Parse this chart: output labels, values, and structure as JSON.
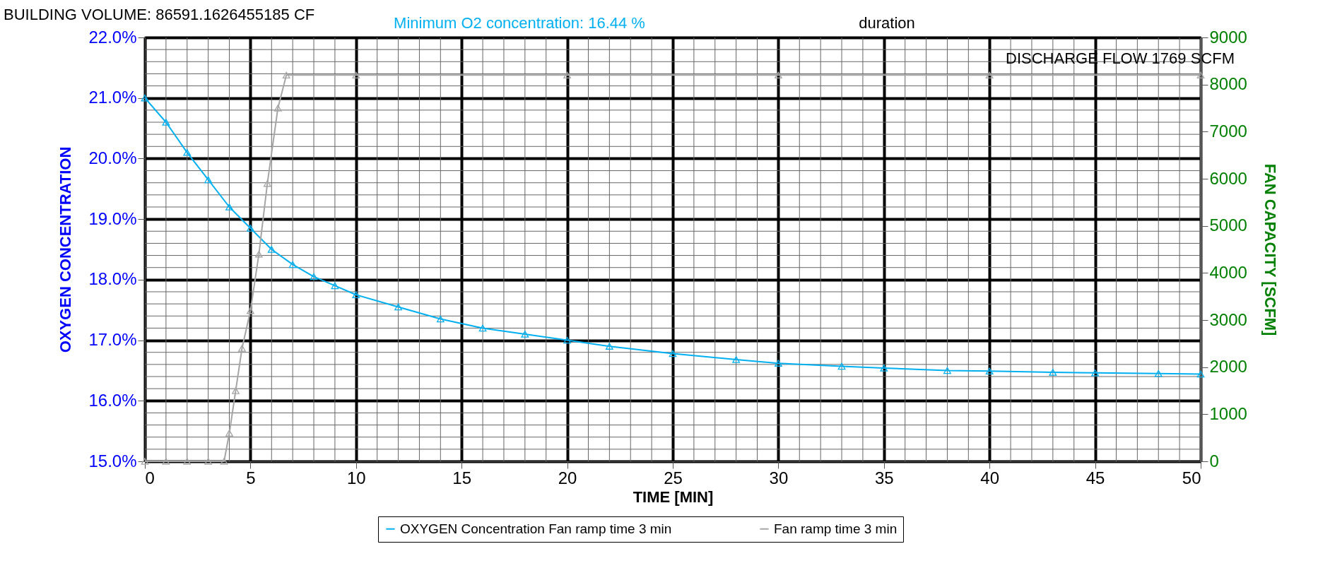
{
  "chart_data": {
    "type": "line",
    "xlabel": "TIME [MIN]",
    "ylabel": "OXYGEN CONCENTRATION",
    "y2label": "FAN CAPACITY  [SCFM]",
    "annotations": [
      "BUILDING VOLUME: 86591.1626455185  CF",
      "Minimum O2 concentration: 16.44  %",
      "duration",
      "DISCHARGE FLOW 1769  SCFM"
    ],
    "xlim": [
      0,
      50
    ],
    "xticks": [
      0,
      5,
      10,
      15,
      20,
      25,
      30,
      35,
      40,
      45,
      50
    ],
    "ylim": [
      15,
      22
    ],
    "yticks": [
      {
        "value": 15,
        "label": "15.0%"
      },
      {
        "value": 16,
        "label": "16.0%"
      },
      {
        "value": 17,
        "label": "17.0%"
      },
      {
        "value": 18,
        "label": "18.0%"
      },
      {
        "value": 19,
        "label": "19.0%"
      },
      {
        "value": 20,
        "label": "20.0%"
      },
      {
        "value": 21,
        "label": "21.0%"
      },
      {
        "value": 22,
        "label": "22.0%"
      }
    ],
    "y2lim": [
      0,
      9000
    ],
    "y2ticks": [
      0,
      1000,
      2000,
      3000,
      4000,
      5000,
      6000,
      7000,
      8000,
      9000
    ],
    "grid": true,
    "legend": "bottom",
    "marker": "triangle",
    "line_style": "solid",
    "series": [
      {
        "name": "OXYGEN Concentration Fan ramp time 3 min",
        "color": "#00b0f0",
        "x": [
          0,
          1,
          2,
          3,
          4,
          5,
          6,
          7,
          8,
          9,
          10,
          12,
          14,
          16,
          18,
          20,
          22,
          25,
          28,
          30,
          33,
          35,
          38,
          40,
          43,
          45,
          48,
          50
        ],
        "values": [
          21.0,
          20.6,
          20.1,
          19.65,
          19.2,
          18.85,
          18.5,
          18.25,
          18.05,
          17.9,
          17.75,
          17.55,
          17.35,
          17.2,
          17.1,
          17.0,
          16.9,
          16.78,
          16.68,
          16.62,
          16.57,
          16.54,
          16.5,
          16.49,
          16.47,
          16.46,
          16.45,
          16.44
        ]
      },
      {
        "name": "Fan ramp time 3 min",
        "color": "#a6a6a6",
        "axis": "y2",
        "x": [
          0,
          1,
          2,
          3,
          3.75,
          4.0,
          4.3,
          4.6,
          5.0,
          5.4,
          5.8,
          6.3,
          6.7,
          10,
          20,
          30,
          40,
          50
        ],
        "values": [
          0,
          0,
          0,
          0,
          0,
          600,
          1500,
          2400,
          3200,
          4400,
          5900,
          7500,
          8200,
          8200,
          8200,
          8200,
          8200,
          8200
        ]
      }
    ]
  }
}
